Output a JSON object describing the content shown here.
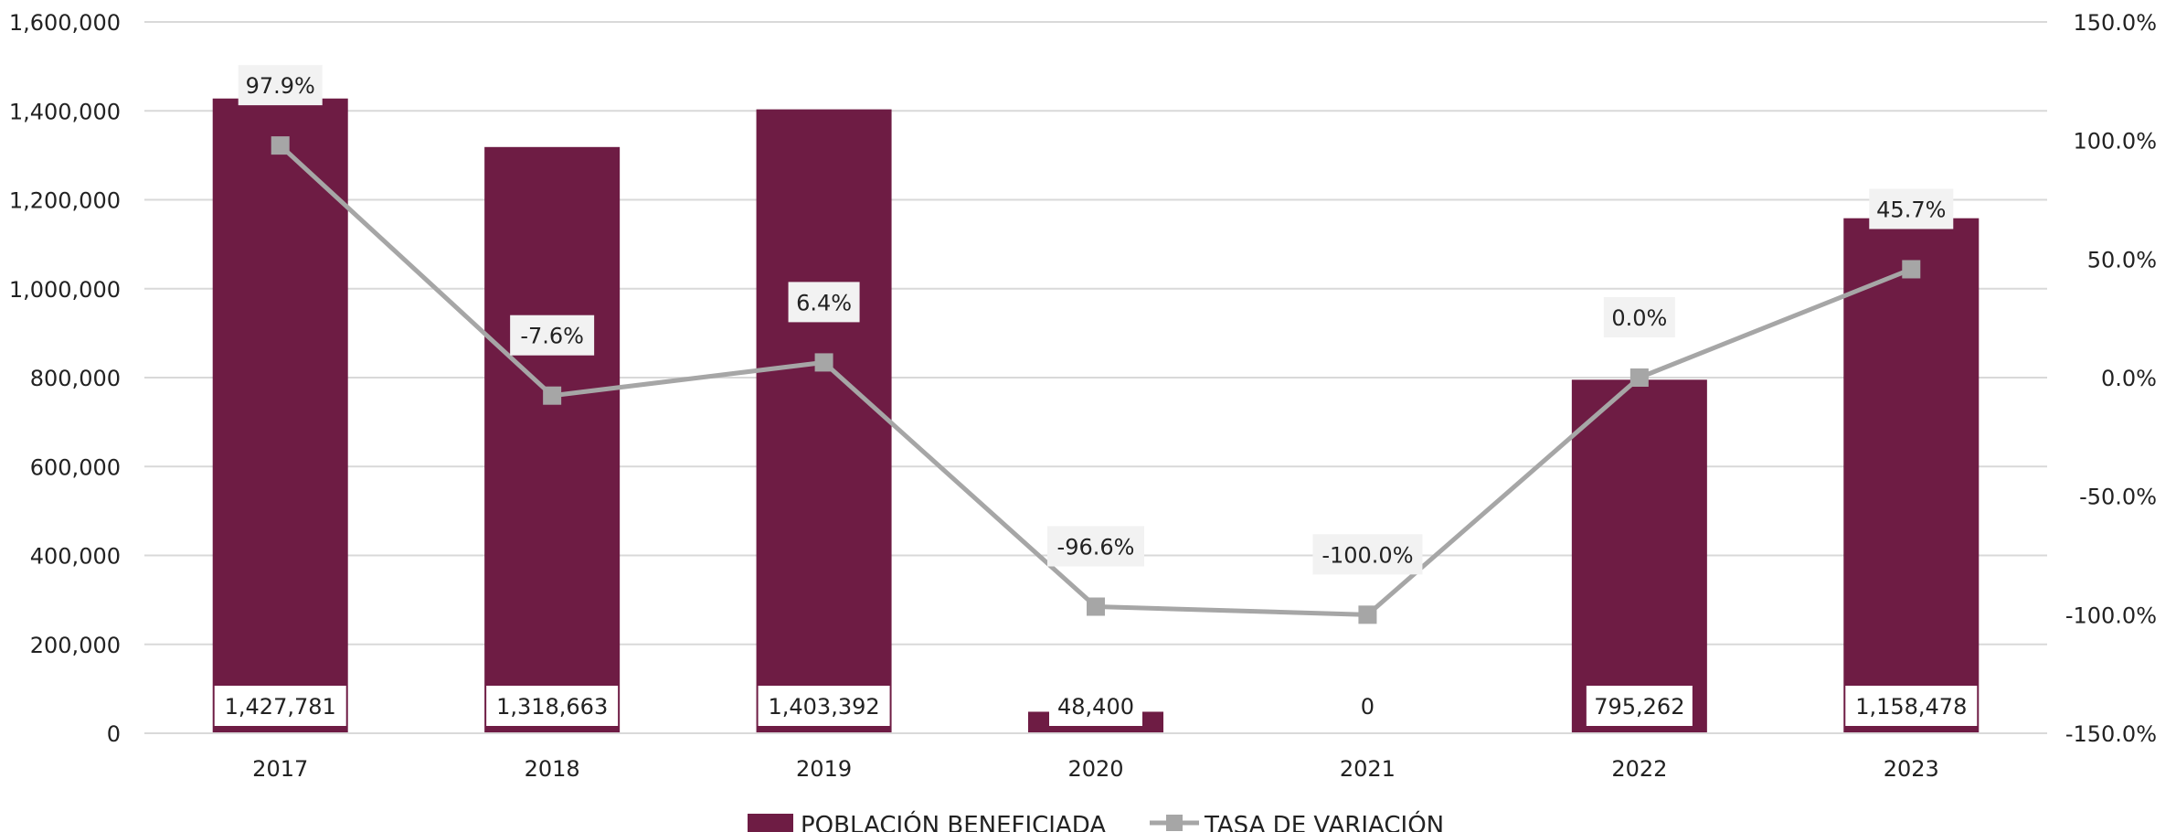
{
  "chart_data": {
    "type": "bar",
    "categories": [
      "2017",
      "2018",
      "2019",
      "2020",
      "2021",
      "2022",
      "2023"
    ],
    "series": [
      {
        "name": "POBLACIÓN BENEFICIADA",
        "type": "bar",
        "axis": "left",
        "values": [
          1427781,
          1318663,
          1403392,
          48400,
          0,
          795262,
          1158478
        ],
        "labels": [
          "1,427,781",
          "1,318,663",
          "1,403,392",
          "48,400",
          "0",
          "795,262",
          "1,158,478"
        ]
      },
      {
        "name": "TASA DE VARIACIÓN",
        "type": "line",
        "axis": "right",
        "values": [
          97.9,
          -7.6,
          6.4,
          -96.6,
          -100.0,
          0.0,
          45.7
        ],
        "labels": [
          "97.9%",
          "-7.6%",
          "6.4%",
          "-96.6%",
          "-100.0%",
          "0.0%",
          "45.7%"
        ]
      }
    ],
    "ylim": [
      0,
      1600000
    ],
    "y2lim": [
      -150,
      150
    ],
    "yticks": [
      "0",
      "200,000",
      "400,000",
      "600,000",
      "800,000",
      "1,000,000",
      "1,200,000",
      "1,400,000",
      "1,600,000"
    ],
    "y2ticks": [
      "-150.0%",
      "-100.0%",
      "-50.0%",
      "0.0%",
      "50.0%",
      "100.0%",
      "150.0%"
    ],
    "grid": true,
    "legend_position": "bottom-center",
    "colors": {
      "bar": "#6e1c44",
      "line": "#a6a6a6",
      "grid": "#d9d9d9",
      "label_bg": "#f2f2f2"
    }
  }
}
